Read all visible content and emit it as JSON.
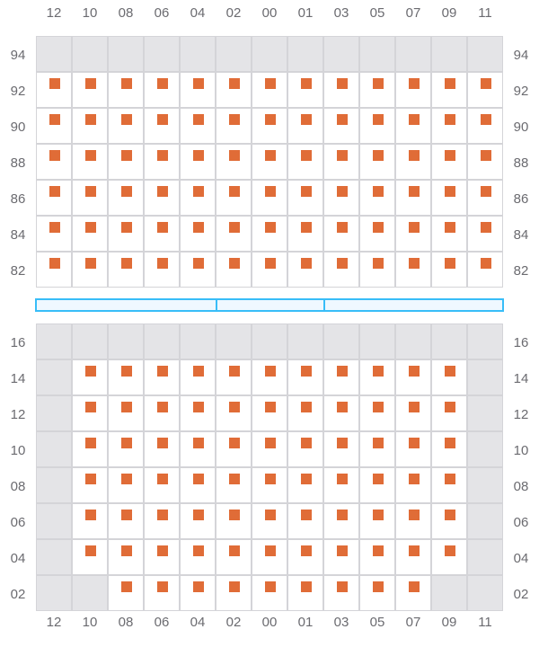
{
  "columns": [
    "12",
    "10",
    "08",
    "06",
    "04",
    "02",
    "00",
    "01",
    "03",
    "05",
    "07",
    "09",
    "11"
  ],
  "colors": {
    "seat": "#e06c37",
    "unavailable": "#e4e4e7",
    "grid": "#d4d4d8",
    "bar_border": "#38bdf8",
    "bar_fill": "#eff8ff"
  },
  "sections": [
    {
      "rows": [
        "94",
        "92",
        "90",
        "88",
        "86",
        "84",
        "82"
      ],
      "cells": [
        "UUUUUUUUUUUUU",
        "AAAAAAAAAAAAA",
        "AAAAAAAAAAAAA",
        "AAAAAAAAAAAAA",
        "AAAAAAAAAAAAA",
        "AAAAAAAAAAAAA",
        "AAAAAAAAAAAAA"
      ]
    },
    {
      "rows": [
        "16",
        "14",
        "12",
        "10",
        "08",
        "06",
        "04",
        "02"
      ],
      "cells": [
        "UUUUUUUUUUUUU",
        "UAAAAAAAAAAAU",
        "UAAAAAAAAAAAU",
        "UAAAAAAAAAAAU",
        "UAAAAAAAAAAAU",
        "UAAAAAAAAAAAU",
        "UAAAAAAAAAAAU",
        "UUAAAAAAAAAUU"
      ]
    }
  ],
  "cell_legend": {
    "U": "unavailable",
    "A": "available"
  },
  "divider_segments": 3
}
